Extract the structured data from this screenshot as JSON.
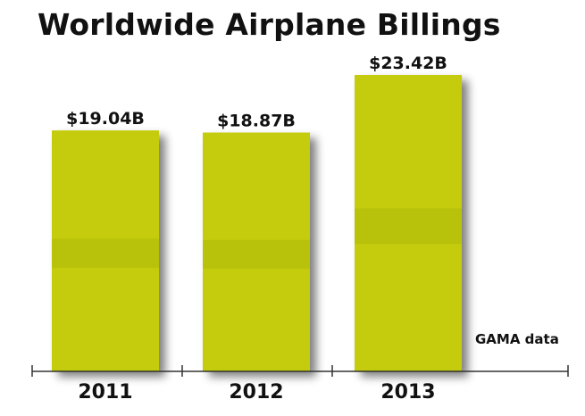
{
  "chart_data": {
    "type": "bar",
    "title": "Worldwide Airplane Billings",
    "categories": [
      "2011",
      "2012",
      "2013"
    ],
    "values": [
      19.04,
      18.87,
      23.42
    ],
    "value_labels": [
      "$19.04B",
      "$18.87B",
      "$23.42B"
    ],
    "ylim": [
      0,
      25
    ],
    "xlabel": "",
    "ylabel": "",
    "grid": false,
    "legend": "none",
    "annotation": "GAMA data",
    "bar_color": "#c4cc0a",
    "bar_shadow_color": "#8a8f1f"
  }
}
